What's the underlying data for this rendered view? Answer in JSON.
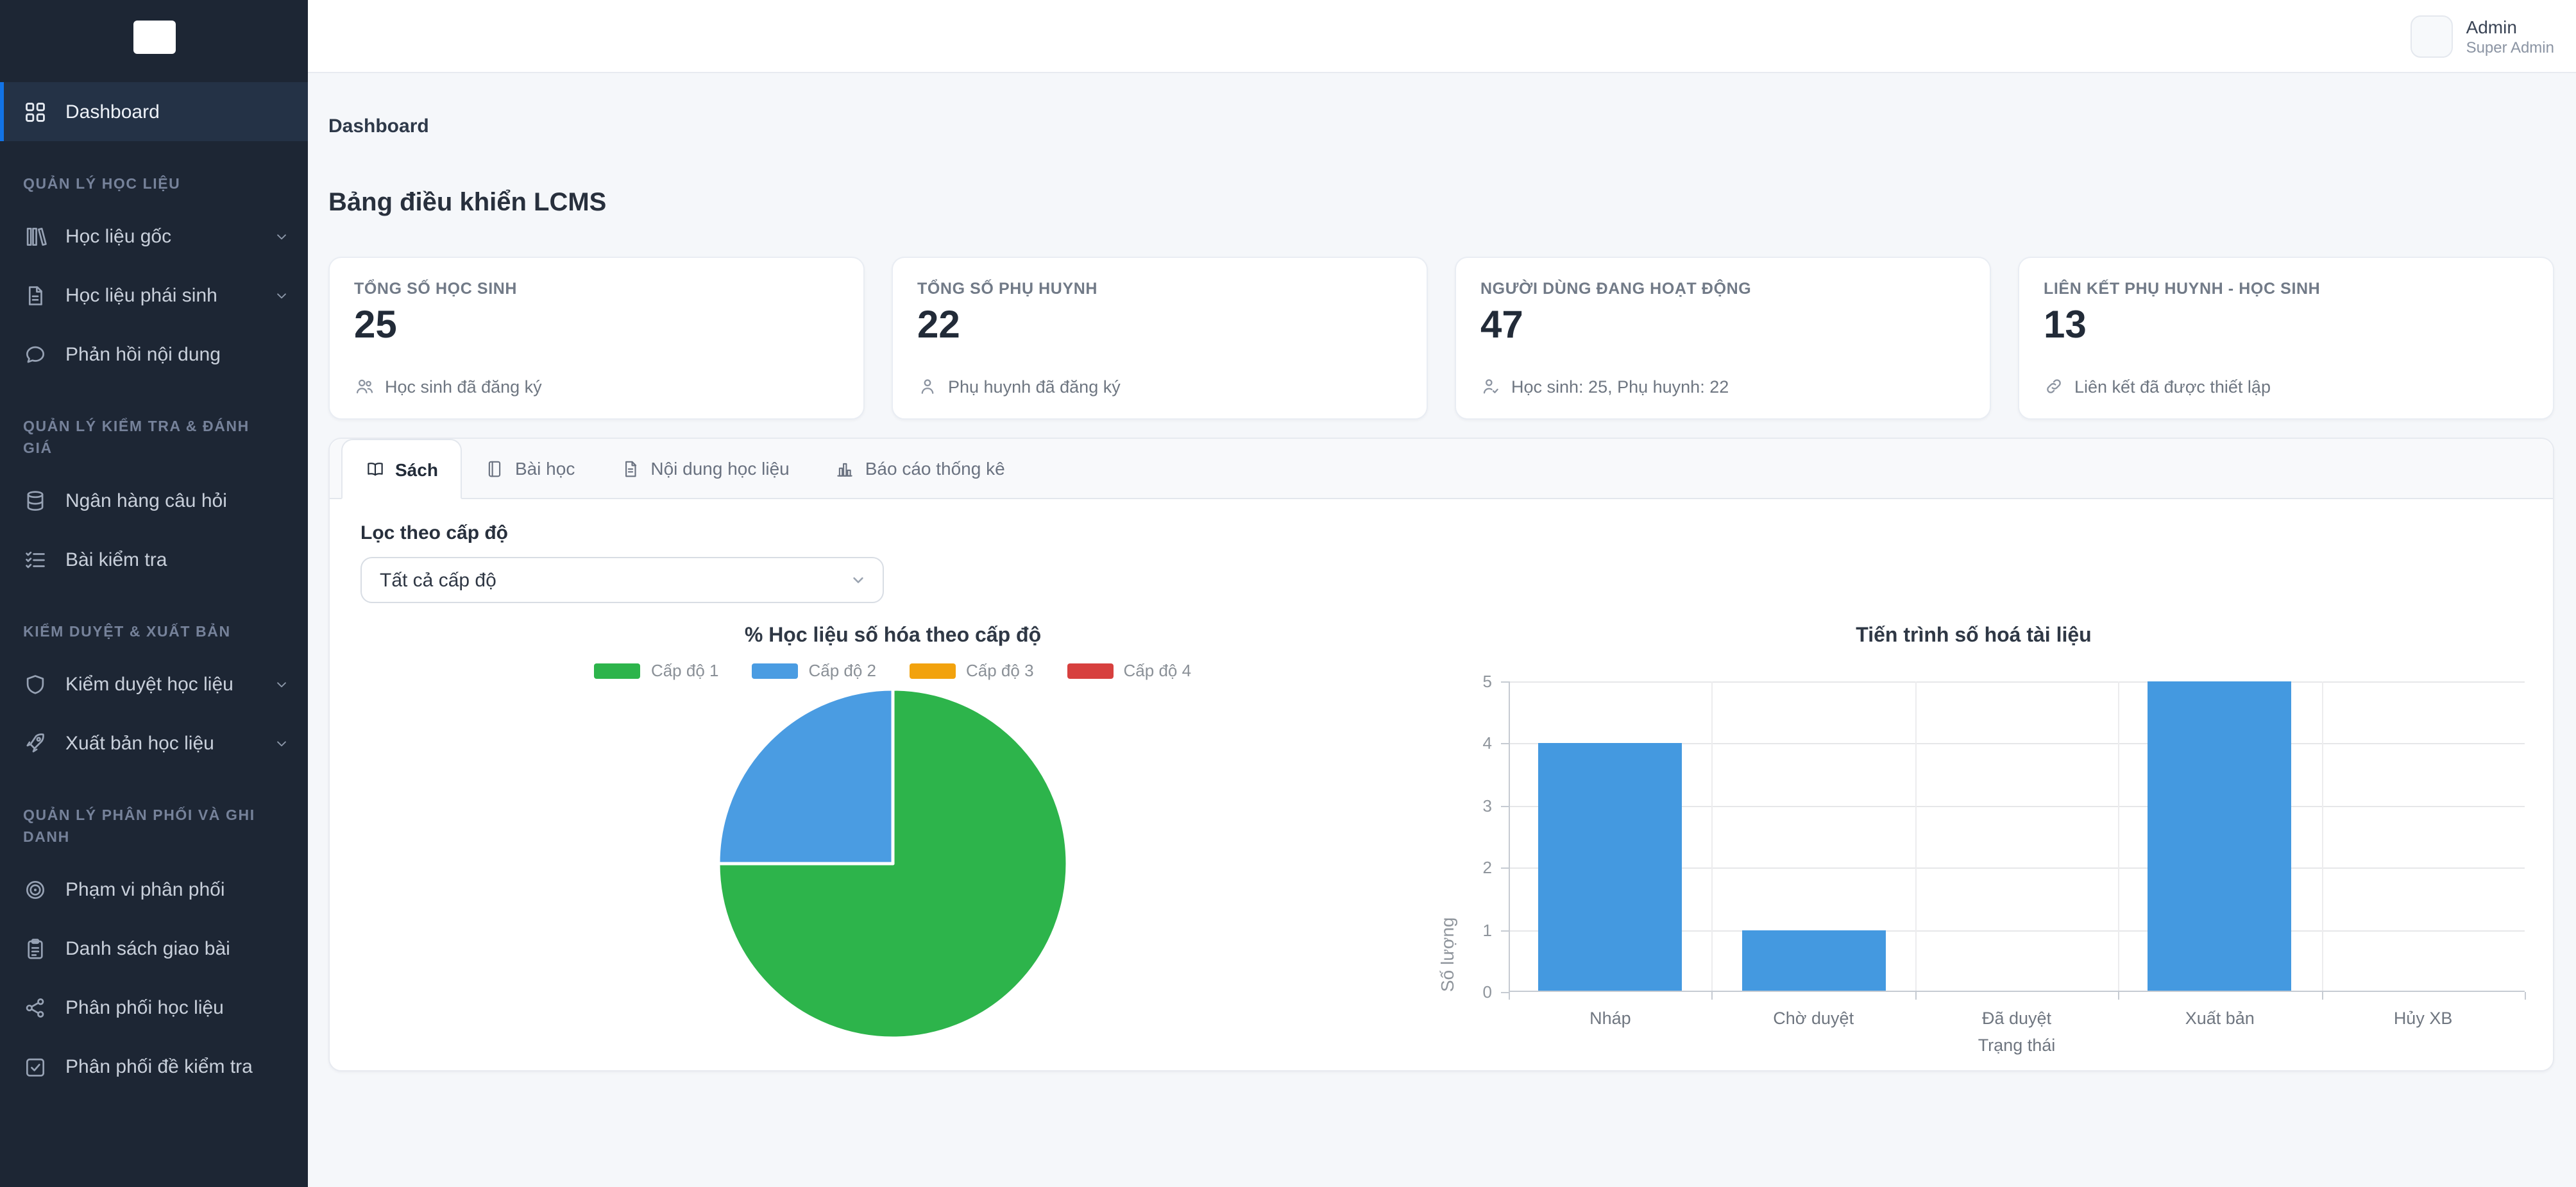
{
  "header": {
    "user_name": "Admin",
    "user_role": "Super Admin"
  },
  "breadcrumb": "Dashboard",
  "page_title": "Bảng điều khiển LCMS",
  "sidebar": {
    "dashboard_label": "Dashboard",
    "sections": [
      {
        "title": "QUẢN LÝ HỌC LIỆU",
        "items": [
          {
            "label": "Học liệu gốc",
            "icon": "books-icon",
            "chevron": true
          },
          {
            "label": "Học liệu phái sinh",
            "icon": "file-text-icon",
            "chevron": true
          },
          {
            "label": "Phản hồi nội dung",
            "icon": "chat-icon",
            "chevron": false
          }
        ]
      },
      {
        "title": "QUẢN LÝ KIỂM TRA & ĐÁNH GIÁ",
        "items": [
          {
            "label": "Ngân hàng câu hỏi",
            "icon": "database-icon",
            "chevron": false
          },
          {
            "label": "Bài kiểm tra",
            "icon": "checklist-icon",
            "chevron": false
          }
        ]
      },
      {
        "title": "KIỂM DUYỆT & XUẤT BẢN",
        "items": [
          {
            "label": "Kiểm duyệt học liệu",
            "icon": "shield-icon",
            "chevron": true
          },
          {
            "label": "Xuất bản học liệu",
            "icon": "rocket-icon",
            "chevron": true
          }
        ]
      },
      {
        "title": "QUẢN LÝ PHÂN PHỐI VÀ GHI DANH",
        "items": [
          {
            "label": "Phạm vi phân phối",
            "icon": "target-icon",
            "chevron": false
          },
          {
            "label": "Danh sách giao bài",
            "icon": "clipboard-icon",
            "chevron": false
          },
          {
            "label": "Phân phối học liệu",
            "icon": "share-icon",
            "chevron": false
          },
          {
            "label": "Phân phối đề kiểm tra",
            "icon": "check-square-icon",
            "chevron": false
          }
        ]
      }
    ]
  },
  "stats": [
    {
      "label": "TỔNG SỐ HỌC SINH",
      "value": "25",
      "note": "Học sinh đã đăng ký",
      "icon": "users-icon"
    },
    {
      "label": "TỔNG SỐ PHỤ HUYNH",
      "value": "22",
      "note": "Phụ huynh đã đăng ký",
      "icon": "user-icon"
    },
    {
      "label": "NGƯỜI DÙNG ĐANG HOẠT ĐỘNG",
      "value": "47",
      "note": "Học sinh: 25, Phụ huynh: 22",
      "icon": "user-check-icon"
    },
    {
      "label": "LIÊN KẾT PHỤ HUYNH - HỌC SINH",
      "value": "13",
      "note": "Liên kết đã được thiết lập",
      "icon": "link-icon"
    }
  ],
  "tabs": [
    {
      "label": "Sách",
      "icon": "book-open-icon",
      "active": true
    },
    {
      "label": "Bài học",
      "icon": "book-icon",
      "active": false
    },
    {
      "label": "Nội dung học liệu",
      "icon": "file-icon",
      "active": false
    },
    {
      "label": "Báo cáo thống kê",
      "icon": "bar-chart-icon",
      "active": false
    }
  ],
  "filter": {
    "label": "Lọc theo cấp độ",
    "selected": "Tất cả cấp độ"
  },
  "chart_data": [
    {
      "type": "pie",
      "title": "% Học liệu số hóa theo cấp độ",
      "labels": [
        "Cấp độ 1",
        "Cấp độ 2",
        "Cấp độ 3",
        "Cấp độ 4"
      ],
      "values": [
        75,
        25,
        0,
        0
      ],
      "colors": [
        "#2db44b",
        "#4a9ce2",
        "#f2a20d",
        "#d7403e"
      ],
      "legend_position": "top"
    },
    {
      "type": "bar",
      "title": "Tiến trình số hoá tài liệu",
      "categories": [
        "Nháp",
        "Chờ duyệt",
        "Đã duyệt",
        "Xuất bản",
        "Hủy XB"
      ],
      "values": [
        4,
        1,
        0,
        5,
        0
      ],
      "xlabel": "Trạng thái",
      "ylabel": "Số lượng",
      "ylim": [
        0,
        5
      ],
      "bar_color": "#4499e0",
      "grid": true
    }
  ]
}
